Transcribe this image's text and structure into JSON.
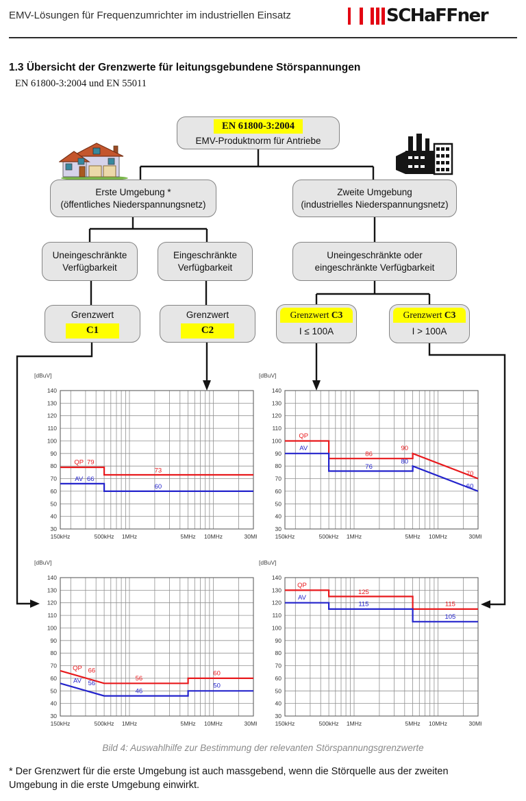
{
  "header": {
    "title": "EMV-Lösungen für Frequenzumrichter im industriellen Einsatz",
    "logo_text": "SCHaFFner"
  },
  "section": {
    "heading": "1.3 Übersicht der Grenzwerte für leitungsgebundene Störspannungen",
    "subheading": "EN 61800-3:2004 und EN 55011"
  },
  "flowchart": {
    "root": {
      "badge": "EN 61800-3:2004",
      "label": "EMV-Produktnorm für Antriebe"
    },
    "erste": {
      "line1": "Erste Umgebung *",
      "line2": "(öffentliches Niederspannungsnetz)"
    },
    "zweite": {
      "line1": "Zweite Umgebung",
      "line2": "(industrielles Niederspannungsnetz)"
    },
    "unrestricted": {
      "line1": "Uneingeschränkte",
      "line2": "Verfügbarkeit"
    },
    "restricted": {
      "line1": "Eingeschränkte",
      "line2": "Verfügbarkeit"
    },
    "either": {
      "line1": "Uneingeschränkte oder",
      "line2": "eingeschränkte Verfügbarkeit"
    },
    "c1": {
      "label": "Grenzwert",
      "badge": "C1"
    },
    "c2": {
      "label": "Grenzwert",
      "badge": "C2"
    },
    "c3a": {
      "badge_normal": "Grenzwert",
      "badge_bold": "C3",
      "label": "I ≤ 100A"
    },
    "c3b": {
      "badge_normal": "Grenzwert",
      "badge_bold": "C3",
      "label": "I > 100A"
    }
  },
  "caption": "Bild 4: Auswahlhilfe zur Bestimmung der relevanten Störspannungsgrenzwerte",
  "footnote": "* Der Grenzwert für die erste Umgebung ist auch massgebend, wenn die Störquelle aus der zweiten Umgebung in die erste Umgebung einwirkt.",
  "colors": {
    "accent_red": "#e30613",
    "highlight_yellow": "#ffff00",
    "box_fill": "#e6e6e6",
    "line_red": "#e8191c",
    "line_blue": "#2323cc"
  },
  "chart_common": {
    "ylabel": "[dBuV]",
    "ylim": [
      30,
      140
    ],
    "ytick_step": 10,
    "xscale": "log",
    "xlim_khz": [
      150,
      30000
    ],
    "grid_khz": [
      150,
      200,
      300,
      400,
      500,
      600,
      700,
      800,
      900,
      1000,
      2000,
      3000,
      4000,
      5000,
      6000,
      7000,
      8000,
      9000,
      10000,
      20000,
      30000
    ],
    "xticks": [
      {
        "khz": 150,
        "label": "150kHz"
      },
      {
        "khz": 500,
        "label": "500kHz"
      },
      {
        "khz": 1000,
        "label": "1MHz"
      },
      {
        "khz": 5000,
        "label": "5MHz"
      },
      {
        "khz": 10000,
        "label": "10MHz"
      },
      {
        "khz": 30000,
        "label": "30MHz"
      }
    ]
  },
  "chart_data": [
    {
      "type": "line",
      "position": "top-left",
      "series": [
        {
          "name": "QP",
          "color": "#e8191c",
          "points": [
            [
              150,
              79
            ],
            [
              500,
              79
            ],
            [
              500,
              73
            ],
            [
              30000,
              73
            ]
          ]
        },
        {
          "name": "AV",
          "color": "#2323cc",
          "points": [
            [
              150,
              66
            ],
            [
              500,
              66
            ],
            [
              500,
              60
            ],
            [
              30000,
              60
            ]
          ]
        }
      ],
      "labels": [
        {
          "text": "QP",
          "khz": 250,
          "db": 81.5,
          "color": "#e8191c"
        },
        {
          "text": "79",
          "khz": 345,
          "db": 81.5,
          "color": "#e8191c"
        },
        {
          "text": "73",
          "khz": 2200,
          "db": 74.8,
          "color": "#e8191c"
        },
        {
          "text": "AV",
          "khz": 250,
          "db": 68,
          "color": "#2323cc"
        },
        {
          "text": "66",
          "khz": 345,
          "db": 68,
          "color": "#2323cc"
        },
        {
          "text": "60",
          "khz": 2200,
          "db": 62,
          "color": "#2323cc"
        }
      ]
    },
    {
      "type": "line",
      "position": "top-right",
      "series": [
        {
          "name": "QP",
          "color": "#e8191c",
          "points": [
            [
              150,
              100
            ],
            [
              500,
              100
            ],
            [
              500,
              86
            ],
            [
              5000,
              86
            ],
            [
              5000,
              90
            ],
            [
              30000,
              70
            ]
          ]
        },
        {
          "name": "AV",
          "color": "#2323cc",
          "points": [
            [
              150,
              90
            ],
            [
              500,
              90
            ],
            [
              500,
              76
            ],
            [
              5000,
              76
            ],
            [
              5000,
              80
            ],
            [
              30000,
              60
            ]
          ]
        }
      ],
      "labels": [
        {
          "text": "QP",
          "khz": 250,
          "db": 102.5,
          "color": "#e8191c"
        },
        {
          "text": "AV",
          "khz": 250,
          "db": 92.5,
          "color": "#2323cc"
        },
        {
          "text": "86",
          "khz": 1500,
          "db": 88,
          "color": "#e8191c"
        },
        {
          "text": "76",
          "khz": 1500,
          "db": 78,
          "color": "#2323cc"
        },
        {
          "text": "90",
          "khz": 4000,
          "db": 92.5,
          "color": "#e8191c"
        },
        {
          "text": "80",
          "khz": 4000,
          "db": 82,
          "color": "#2323cc"
        },
        {
          "text": "70",
          "khz": 24000,
          "db": 72.5,
          "color": "#e8191c"
        },
        {
          "text": "60",
          "khz": 24000,
          "db": 62.5,
          "color": "#2323cc"
        }
      ]
    },
    {
      "type": "line",
      "position": "bottom-left",
      "series": [
        {
          "name": "QP",
          "color": "#e8191c",
          "points": [
            [
              150,
              66
            ],
            [
              500,
              56
            ],
            [
              5000,
              56
            ],
            [
              5000,
              60
            ],
            [
              30000,
              60
            ]
          ]
        },
        {
          "name": "AV",
          "color": "#2323cc",
          "points": [
            [
              150,
              56
            ],
            [
              500,
              46
            ],
            [
              5000,
              46
            ],
            [
              5000,
              50
            ],
            [
              30000,
              50
            ]
          ]
        }
      ],
      "labels": [
        {
          "text": "QP",
          "khz": 240,
          "db": 66.5,
          "color": "#e8191c"
        },
        {
          "text": "66",
          "khz": 355,
          "db": 64.5,
          "color": "#e8191c"
        },
        {
          "text": "AV",
          "khz": 240,
          "db": 56.5,
          "color": "#2323cc"
        },
        {
          "text": "56",
          "khz": 355,
          "db": 54.5,
          "color": "#2323cc"
        },
        {
          "text": "56",
          "khz": 1300,
          "db": 58.3,
          "color": "#e8191c"
        },
        {
          "text": "46",
          "khz": 1300,
          "db": 48.3,
          "color": "#2323cc"
        },
        {
          "text": "60",
          "khz": 11000,
          "db": 62.5,
          "color": "#e8191c"
        },
        {
          "text": "50",
          "khz": 11000,
          "db": 52.5,
          "color": "#2323cc"
        }
      ]
    },
    {
      "type": "line",
      "position": "bottom-right",
      "series": [
        {
          "name": "QP",
          "color": "#e8191c",
          "points": [
            [
              150,
              130
            ],
            [
              500,
              130
            ],
            [
              500,
              125
            ],
            [
              5000,
              125
            ],
            [
              5000,
              115
            ],
            [
              30000,
              115
            ]
          ]
        },
        {
          "name": "AV",
          "color": "#2323cc",
          "points": [
            [
              150,
              120
            ],
            [
              500,
              120
            ],
            [
              500,
              115
            ],
            [
              5000,
              115
            ],
            [
              5000,
              105
            ],
            [
              30000,
              105
            ]
          ]
        }
      ],
      "labels": [
        {
          "text": "QP",
          "khz": 240,
          "db": 132.5,
          "color": "#e8191c"
        },
        {
          "text": "AV",
          "khz": 240,
          "db": 122.5,
          "color": "#2323cc"
        },
        {
          "text": "125",
          "khz": 1300,
          "db": 127,
          "color": "#e8191c"
        },
        {
          "text": "115",
          "khz": 1300,
          "db": 117.3,
          "color": "#2323cc"
        },
        {
          "text": "115",
          "khz": 14000,
          "db": 117.3,
          "color": "#e8191c"
        },
        {
          "text": "105",
          "khz": 14000,
          "db": 107.3,
          "color": "#2323cc"
        }
      ]
    }
  ]
}
